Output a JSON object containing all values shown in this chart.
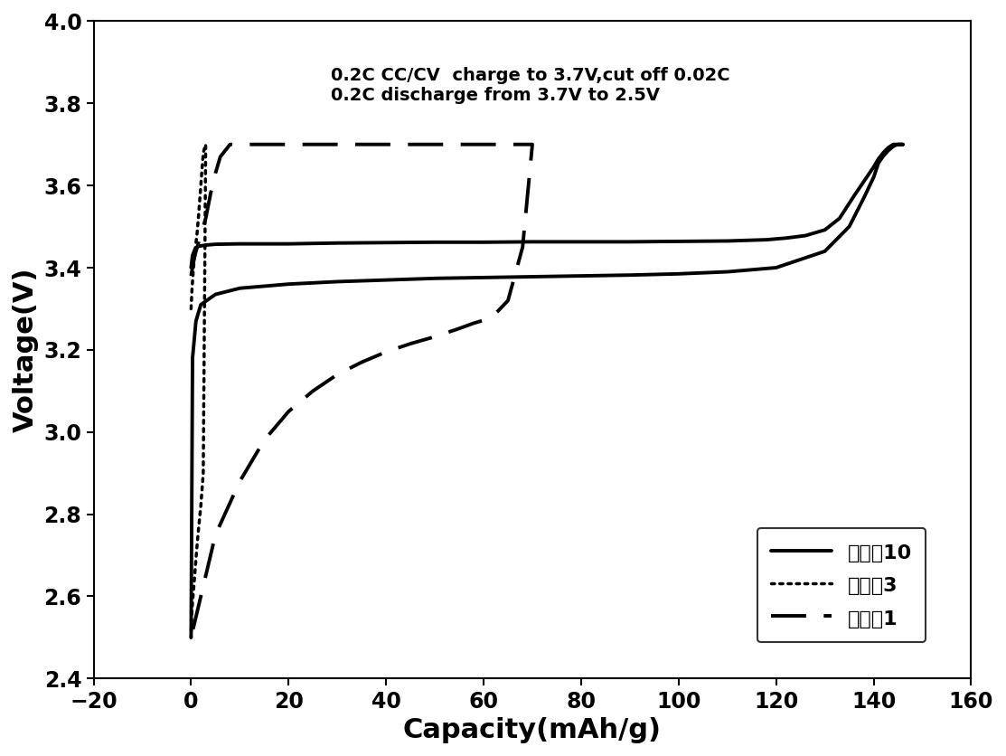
{
  "xlabel": "Capacity(mAh/g)",
  "ylabel": "Voltage(V)",
  "xlim": [
    -20,
    160
  ],
  "ylim": [
    2.4,
    4.0
  ],
  "xticks": [
    -20,
    0,
    20,
    40,
    60,
    80,
    100,
    120,
    140,
    160
  ],
  "yticks": [
    2.4,
    2.6,
    2.8,
    3.0,
    3.2,
    3.4,
    3.6,
    3.8,
    4.0
  ],
  "annotation": "0.2C CC/CV  charge to 3.7V,cut off 0.02C\n0.2C discharge from 3.7V to 2.5V",
  "legend": [
    "实施例10",
    "对比例3",
    "对比例1"
  ],
  "s1_x": [
    0,
    0.3,
    0.8,
    1.5,
    3,
    5,
    10,
    20,
    30,
    40,
    50,
    60,
    70,
    80,
    90,
    100,
    110,
    118,
    122,
    126,
    130,
    133,
    136,
    138,
    140,
    141,
    142,
    143,
    144,
    144.5,
    145,
    145.5,
    146,
    146,
    145.5,
    145,
    144.5,
    144,
    143,
    142,
    141,
    140,
    138,
    135,
    130,
    120,
    110,
    100,
    90,
    80,
    70,
    60,
    50,
    40,
    30,
    20,
    10,
    5,
    2,
    1,
    0.3,
    0
  ],
  "s1_y": [
    3.4,
    3.43,
    3.445,
    3.452,
    3.455,
    3.457,
    3.458,
    3.458,
    3.46,
    3.461,
    3.462,
    3.462,
    3.463,
    3.463,
    3.463,
    3.464,
    3.465,
    3.468,
    3.472,
    3.478,
    3.492,
    3.52,
    3.575,
    3.61,
    3.645,
    3.665,
    3.68,
    3.692,
    3.7,
    3.7,
    3.7,
    3.7,
    3.7,
    3.7,
    3.7,
    3.7,
    3.698,
    3.695,
    3.685,
    3.672,
    3.655,
    3.62,
    3.57,
    3.5,
    3.44,
    3.4,
    3.39,
    3.385,
    3.382,
    3.38,
    3.378,
    3.376,
    3.374,
    3.37,
    3.366,
    3.36,
    3.35,
    3.335,
    3.31,
    3.27,
    3.18,
    2.5
  ],
  "s2_x": [
    0,
    0.2,
    0.5,
    0.8,
    1.0,
    1.2,
    1.5,
    2.0,
    2.5,
    3.0,
    3.0,
    2.5,
    2.0,
    1.5,
    1.2,
    1.0,
    0.8,
    0.6,
    0.4,
    0.2,
    0
  ],
  "s2_y": [
    3.3,
    3.35,
    3.4,
    3.44,
    3.46,
    3.48,
    3.52,
    3.6,
    3.68,
    3.7,
    3.7,
    2.9,
    2.82,
    2.76,
    2.72,
    2.69,
    2.66,
    2.63,
    2.6,
    2.57,
    2.5
  ],
  "s3_x": [
    0,
    0.3,
    0.6,
    1.0,
    1.5,
    2.0,
    3.0,
    4.0,
    5.0,
    6.0,
    8.0,
    10,
    15,
    20,
    25,
    30,
    35,
    40,
    45,
    50,
    55,
    60,
    65,
    70,
    70,
    68,
    65,
    63,
    62,
    61,
    60,
    58,
    55,
    50,
    45,
    40,
    35,
    30,
    25,
    20,
    15,
    10,
    5,
    2,
    0
  ],
  "s3_y": [
    3.38,
    3.4,
    3.42,
    3.44,
    3.46,
    3.48,
    3.52,
    3.58,
    3.63,
    3.67,
    3.7,
    3.7,
    3.7,
    3.7,
    3.7,
    3.7,
    3.7,
    3.7,
    3.7,
    3.7,
    3.7,
    3.7,
    3.7,
    3.7,
    3.7,
    3.45,
    3.32,
    3.295,
    3.285,
    3.278,
    3.272,
    3.265,
    3.252,
    3.232,
    3.215,
    3.195,
    3.17,
    3.14,
    3.1,
    3.05,
    2.98,
    2.88,
    2.75,
    2.6,
    2.5
  ]
}
